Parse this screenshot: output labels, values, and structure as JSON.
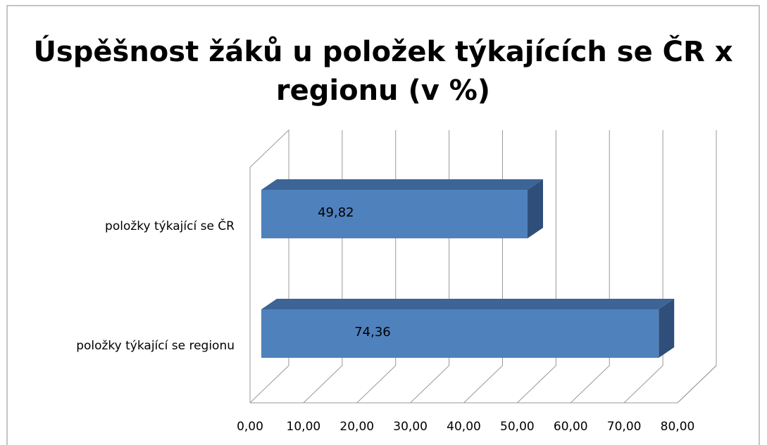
{
  "chart_data": {
    "type": "bar",
    "orientation": "horizontal",
    "title": [
      "Úspěšnost žáků u položek týkajících se ČR x",
      "regionu (v %)"
    ],
    "categories": [
      "položky týkající se ČR",
      "položky týkající se regionu"
    ],
    "values": [
      49.82,
      74.36
    ],
    "value_labels": [
      "49,82",
      "74,36"
    ],
    "color": "#4f81bd",
    "xlim": [
      0,
      80
    ],
    "xticks": [
      {
        "value": 0,
        "label": "0,00"
      },
      {
        "value": 10,
        "label": "10,00"
      },
      {
        "value": 20,
        "label": "20,00"
      },
      {
        "value": 30,
        "label": "30,00"
      },
      {
        "value": 40,
        "label": "40,00"
      },
      {
        "value": 50,
        "label": "50,00"
      },
      {
        "value": 60,
        "label": "60,00"
      },
      {
        "value": 70,
        "label": "70,00"
      },
      {
        "value": 80,
        "label": "80,00"
      }
    ],
    "grid": true
  }
}
